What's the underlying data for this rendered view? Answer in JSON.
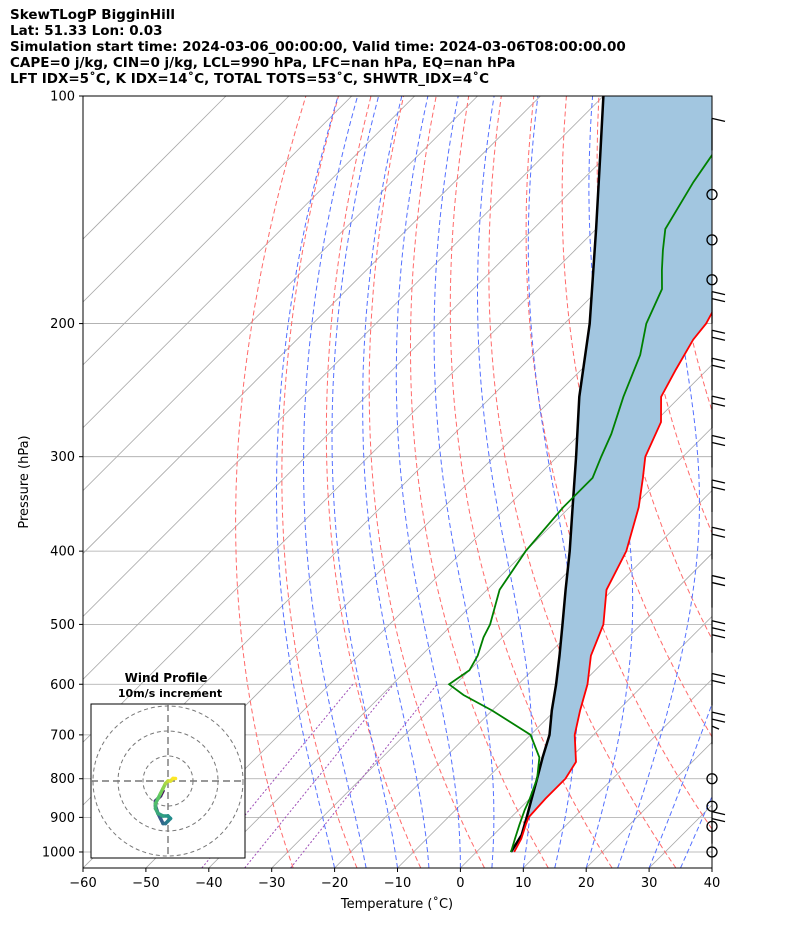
{
  "title_lines": [
    "SkewTLogP BigginHill",
    "Lat: 51.33   Lon: 0.03",
    "Simulation start time: 2024-03-06_00:00:00, Valid time: 2024-03-06T08:00:00.00",
    "CAPE=0 j/kg, CIN=0 j/kg, LCL=990 hPa, LFC=nan hPa, EQ=nan hPa",
    "LFT IDX=5˚C, K IDX=14˚C, TOTAL TOTS=53˚C, SHWTR_IDX=4˚C"
  ],
  "colors": {
    "temperature": "#ff0000",
    "dewpoint": "#008000",
    "parcel": "#000000",
    "cape_fill": "#a2c6e0",
    "dry_adiabat": "#ff6a6a",
    "moist_adiabat": "#5470ff",
    "mixing_ratio": "#9e4fb7",
    "isotherm": "#a8a8a8"
  },
  "chart_data": {
    "type": "skew-t log-p",
    "xlabel": "Temperature (˚C)",
    "ylabel": "Pressure (hPa)",
    "xlim": [
      -60,
      40
    ],
    "ylim_hpa": [
      1050,
      100
    ],
    "y_scale": "log",
    "x_ticks": [
      "−60",
      "−50",
      "−40",
      "−30",
      "−20",
      "−10",
      "0",
      "10",
      "20",
      "30",
      "40"
    ],
    "y_ticks": [
      "100",
      "200",
      "300",
      "400",
      "500",
      "600",
      "700",
      "800",
      "900",
      "1000"
    ],
    "grid": true,
    "series": [
      {
        "role": "temperature",
        "points": [
          [
            1000,
            6
          ],
          [
            960,
            5
          ],
          [
            920,
            3.5
          ],
          [
            900,
            2.8
          ],
          [
            850,
            2.5
          ],
          [
            800,
            2.5
          ],
          [
            760,
            1.5
          ],
          [
            700,
            -3
          ],
          [
            650,
            -6
          ],
          [
            600,
            -9
          ],
          [
            550,
            -13
          ],
          [
            500,
            -16
          ],
          [
            450,
            -21
          ],
          [
            400,
            -24
          ],
          [
            350,
            -29
          ],
          [
            320,
            -33
          ],
          [
            300,
            -36
          ],
          [
            270,
            -39
          ],
          [
            250,
            -43
          ],
          [
            230,
            -45
          ],
          [
            210,
            -47
          ],
          [
            200,
            -47.5
          ],
          [
            180,
            -50
          ],
          [
            160,
            -51
          ],
          [
            150,
            -52
          ],
          [
            140,
            -53
          ],
          [
            125,
            -54
          ],
          [
            115,
            -55
          ],
          [
            100,
            -56
          ]
        ]
      },
      {
        "role": "dewpoint",
        "points": [
          [
            1000,
            5.5
          ],
          [
            960,
            4
          ],
          [
            920,
            2.5
          ],
          [
            880,
            1
          ],
          [
            850,
            0
          ],
          [
            800,
            -2
          ],
          [
            750,
            -5
          ],
          [
            700,
            -10
          ],
          [
            650,
            -20
          ],
          [
            620,
            -27
          ],
          [
            600,
            -31
          ],
          [
            575,
            -30
          ],
          [
            550,
            -31
          ],
          [
            520,
            -33
          ],
          [
            500,
            -34
          ],
          [
            450,
            -38
          ],
          [
            400,
            -40
          ],
          [
            350,
            -41
          ],
          [
            320,
            -41
          ],
          [
            300,
            -43
          ],
          [
            280,
            -45
          ],
          [
            250,
            -49
          ],
          [
            220,
            -53
          ],
          [
            200,
            -57
          ],
          [
            180,
            -60
          ],
          [
            170,
            -63
          ],
          [
            160,
            -66
          ],
          [
            150,
            -69
          ],
          [
            130,
            -72
          ],
          [
            115,
            -74
          ],
          [
            100,
            -76
          ]
        ]
      },
      {
        "role": "parcel",
        "points": [
          [
            1000,
            5.5
          ],
          [
            950,
            4.5
          ],
          [
            900,
            2.5
          ],
          [
            850,
            0.3
          ],
          [
            800,
            -2
          ],
          [
            750,
            -4.5
          ],
          [
            700,
            -7
          ],
          [
            650,
            -10.5
          ],
          [
            600,
            -14
          ],
          [
            550,
            -18
          ],
          [
            500,
            -22.5
          ],
          [
            450,
            -27.5
          ],
          [
            400,
            -33
          ],
          [
            350,
            -39.5
          ],
          [
            300,
            -47
          ],
          [
            250,
            -56
          ],
          [
            200,
            -66
          ],
          [
            150,
            -80
          ],
          [
            120,
            -91
          ],
          [
            100,
            -100
          ]
        ]
      }
    ],
    "wind_barbs": [
      {
        "p": 1000,
        "type": "calm"
      },
      {
        "p": 975,
        "barbs": [
          10,
          10
        ]
      },
      {
        "p": 925,
        "type": "calm"
      },
      {
        "p": 870,
        "type": "calm"
      },
      {
        "p": 800,
        "type": "calm"
      },
      {
        "p": 720,
        "barbs": [
          10,
          10,
          5
        ]
      },
      {
        "p": 640,
        "barbs": [
          10,
          10
        ]
      },
      {
        "p": 545,
        "barbs": [
          10,
          10,
          10
        ]
      },
      {
        "p": 475,
        "barbs": [
          10,
          10
        ]
      },
      {
        "p": 410,
        "barbs": [
          10,
          10
        ]
      },
      {
        "p": 355,
        "barbs": [
          10,
          10
        ]
      },
      {
        "p": 310,
        "barbs": [
          10,
          10
        ]
      },
      {
        "p": 275,
        "barbs": [
          10,
          10
        ]
      },
      {
        "p": 245,
        "barbs": [
          10,
          10
        ]
      },
      {
        "p": 225,
        "barbs": [
          10,
          10
        ]
      },
      {
        "p": 200,
        "barbs": [
          10,
          10
        ]
      },
      {
        "p": 175,
        "type": "calm"
      },
      {
        "p": 155,
        "type": "calm"
      },
      {
        "p": 135,
        "type": "calm"
      },
      {
        "p": 118,
        "barbs": [
          10
        ]
      }
    ],
    "hodograph": {
      "title": "Wind Profile",
      "subtitle": "10m/s increment",
      "rings": 3,
      "points": [
        [
          -2,
          -4
        ],
        [
          -3,
          -6
        ],
        [
          -4,
          -7
        ],
        [
          -5,
          -8
        ],
        [
          -5,
          -10
        ],
        [
          -4,
          -13
        ],
        [
          -3,
          -15
        ],
        [
          -2,
          -17
        ],
        [
          -1,
          -17
        ],
        [
          0,
          -16
        ],
        [
          1,
          -15
        ],
        [
          0,
          -14
        ],
        [
          -2,
          -14
        ],
        [
          -4,
          -13
        ],
        [
          -5,
          -11
        ],
        [
          -5,
          -9
        ],
        [
          -4,
          -7
        ],
        [
          -3,
          -5
        ],
        [
          -2,
          -3
        ],
        [
          -1,
          -1
        ],
        [
          0,
          0
        ],
        [
          1,
          0
        ],
        [
          2,
          1
        ],
        [
          3,
          1
        ]
      ]
    }
  }
}
